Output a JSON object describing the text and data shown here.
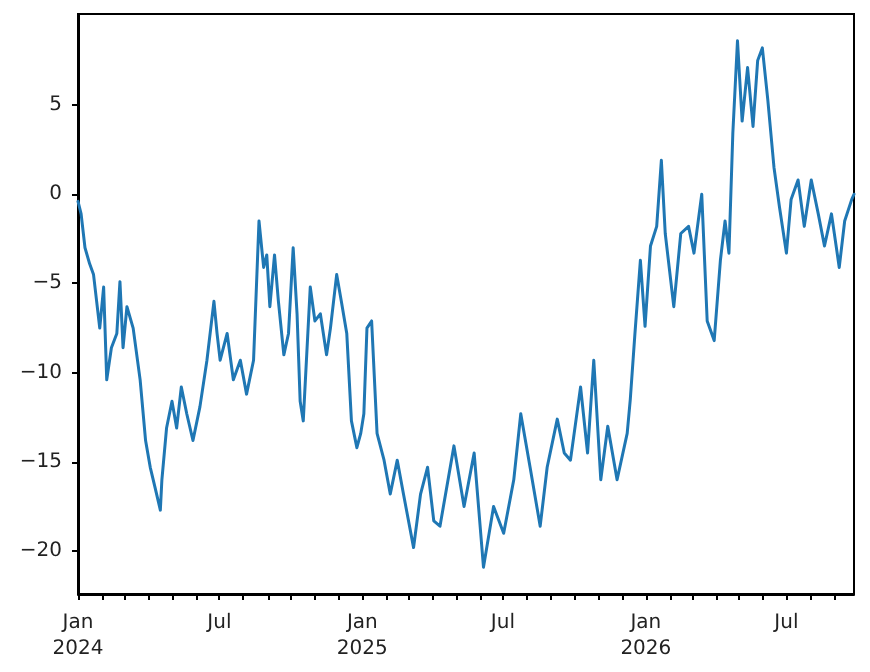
{
  "chart_data": {
    "type": "line",
    "x": [
      "2024-01-01",
      "2024-01-05",
      "2024-01-10",
      "2024-01-16",
      "2024-01-21",
      "2024-01-25",
      "2024-01-29",
      "2024-02-03",
      "2024-02-07",
      "2024-02-13",
      "2024-02-20",
      "2024-02-24",
      "2024-02-28",
      "2024-03-04",
      "2024-03-12",
      "2024-03-21",
      "2024-03-28",
      "2024-04-03",
      "2024-04-09",
      "2024-04-16",
      "2024-04-18",
      "2024-04-24",
      "2024-05-01",
      "2024-05-07",
      "2024-05-13",
      "2024-05-20",
      "2024-05-28",
      "2024-06-06",
      "2024-06-15",
      "2024-06-24",
      "2024-06-28",
      "2024-07-02",
      "2024-07-11",
      "2024-07-19",
      "2024-07-28",
      "2024-08-05",
      "2024-08-14",
      "2024-08-21",
      "2024-08-27",
      "2024-08-31",
      "2024-09-04",
      "2024-09-10",
      "2024-09-15",
      "2024-09-22",
      "2024-09-28",
      "2024-10-04",
      "2024-10-09",
      "2024-10-13",
      "2024-10-17",
      "2024-10-26",
      "2024-11-01",
      "2024-11-08",
      "2024-11-16",
      "2024-11-21",
      "2024-11-29",
      "2024-12-05",
      "2024-12-12",
      "2024-12-18",
      "2024-12-25",
      "2024-12-30",
      "2025-01-03",
      "2025-01-07",
      "2025-01-13",
      "2025-01-20",
      "2025-01-29",
      "2025-02-06",
      "2025-02-15",
      "2025-02-23",
      "2025-03-08",
      "2025-03-17",
      "2025-03-26",
      "2025-04-03",
      "2025-04-11",
      "2025-04-29",
      "2025-05-12",
      "2025-05-25",
      "2025-06-06",
      "2025-06-19",
      "2025-07-02",
      "2025-07-15",
      "2025-07-24",
      "2025-08-05",
      "2025-08-18",
      "2025-08-27",
      "2025-09-09",
      "2025-09-18",
      "2025-09-26",
      "2025-10-09",
      "2025-10-18",
      "2025-10-26",
      "2025-11-04",
      "2025-11-13",
      "2025-11-25",
      "2025-12-08",
      "2025-12-12",
      "2025-12-18",
      "2025-12-25",
      "2025-12-31",
      "2026-01-07",
      "2026-01-15",
      "2026-01-21",
      "2026-01-26",
      "2026-02-06",
      "2026-02-15",
      "2026-02-25",
      "2026-03-04",
      "2026-03-14",
      "2026-03-21",
      "2026-03-30",
      "2026-04-07",
      "2026-04-13",
      "2026-04-18",
      "2026-04-23",
      "2026-04-29",
      "2026-05-05",
      "2026-05-12",
      "2026-05-19",
      "2026-05-25",
      "2026-05-31",
      "2026-06-07",
      "2026-06-15",
      "2026-06-22",
      "2026-07-01",
      "2026-07-07",
      "2026-07-16",
      "2026-07-24",
      "2026-08-02",
      "2026-08-11",
      "2026-08-19",
      "2026-08-28",
      "2026-09-07",
      "2026-09-14",
      "2026-09-23",
      "2026-09-26"
    ],
    "series": [
      {
        "color": "#1f77b4",
        "values": [
          -0.4,
          -1.1,
          -3.0,
          -3.9,
          -4.5,
          -6.0,
          -7.5,
          -5.2,
          -10.4,
          -8.6,
          -7.8,
          -4.9,
          -8.6,
          -6.3,
          -7.5,
          -10.4,
          -13.8,
          -15.3,
          -16.4,
          -17.7,
          -16.0,
          -13.1,
          -11.6,
          -13.1,
          -10.8,
          -12.3,
          -13.8,
          -11.9,
          -9.3,
          -6.0,
          -7.8,
          -9.3,
          -7.8,
          -10.4,
          -9.3,
          -11.2,
          -9.3,
          -1.5,
          -4.1,
          -3.4,
          -6.3,
          -3.4,
          -6.0,
          -9.0,
          -7.8,
          -3.0,
          -6.7,
          -11.6,
          -12.7,
          -5.2,
          -7.1,
          -6.7,
          -9.0,
          -7.5,
          -4.5,
          -6.0,
          -7.8,
          -12.7,
          -14.2,
          -13.4,
          -12.3,
          -7.5,
          -7.1,
          -13.4,
          -14.9,
          -16.8,
          -14.9,
          -16.8,
          -19.8,
          -16.8,
          -15.3,
          -18.3,
          -18.6,
          -14.1,
          -17.5,
          -14.5,
          -20.9,
          -17.5,
          -19.0,
          -16.0,
          -12.3,
          -15.3,
          -18.6,
          -15.3,
          -12.6,
          -14.5,
          -14.9,
          -10.8,
          -14.5,
          -9.3,
          -16.0,
          -13.0,
          -16.0,
          -13.4,
          -11.5,
          -7.8,
          -3.7,
          -7.4,
          -2.9,
          -1.8,
          1.9,
          -2.2,
          -6.3,
          -2.2,
          -1.8,
          -3.3,
          0.0,
          -7.1,
          -8.2,
          -3.7,
          -1.5,
          -3.3,
          3.4,
          8.6,
          4.1,
          7.1,
          3.8,
          7.5,
          8.2,
          5.3,
          1.5,
          -0.7,
          -3.3,
          -0.3,
          0.8,
          -1.8,
          0.8,
          -1.1,
          -2.9,
          -1.1,
          -4.1,
          -1.5,
          -0.3,
          0.0
        ]
      }
    ],
    "xlim": [
      "2024-01-01",
      "2026-09-26"
    ],
    "xticks": [
      {
        "value": "2024-01",
        "label": "Jan\n2024"
      },
      {
        "value": "2024-02",
        "label": null
      },
      {
        "value": "2024-03",
        "label": null
      },
      {
        "value": "2024-04",
        "label": null
      },
      {
        "value": "2024-05",
        "label": null
      },
      {
        "value": "2024-06",
        "label": null
      },
      {
        "value": "2024-07",
        "label": "Jul"
      },
      {
        "value": "2024-08",
        "label": null
      },
      {
        "value": "2024-09",
        "label": null
      },
      {
        "value": "2024-10",
        "label": null
      },
      {
        "value": "2024-11",
        "label": null
      },
      {
        "value": "2024-12",
        "label": null
      },
      {
        "value": "2025-01",
        "label": "Jan\n2025"
      },
      {
        "value": "2025-02",
        "label": null
      },
      {
        "value": "2025-03",
        "label": null
      },
      {
        "value": "2025-04",
        "label": null
      },
      {
        "value": "2025-05",
        "label": null
      },
      {
        "value": "2025-06",
        "label": null
      },
      {
        "value": "2025-07",
        "label": "Jul"
      },
      {
        "value": "2025-08",
        "label": null
      },
      {
        "value": "2025-09",
        "label": null
      },
      {
        "value": "2025-10",
        "label": null
      },
      {
        "value": "2025-11",
        "label": null
      },
      {
        "value": "2025-12",
        "label": null
      },
      {
        "value": "2026-01",
        "label": "Jan\n2026"
      },
      {
        "value": "2026-02",
        "label": null
      },
      {
        "value": "2026-03",
        "label": null
      },
      {
        "value": "2026-04",
        "label": null
      },
      {
        "value": "2026-05",
        "label": null
      },
      {
        "value": "2026-06",
        "label": null
      },
      {
        "value": "2026-07",
        "label": "Jul"
      },
      {
        "value": "2026-08",
        "label": null
      },
      {
        "value": "2026-09",
        "label": null
      }
    ],
    "ylim": [
      -22.4,
      10.1
    ],
    "yticks": [
      -20,
      -15,
      -10,
      -5,
      0,
      5
    ],
    "grid": false,
    "marker": "none",
    "line_style": "solid"
  }
}
